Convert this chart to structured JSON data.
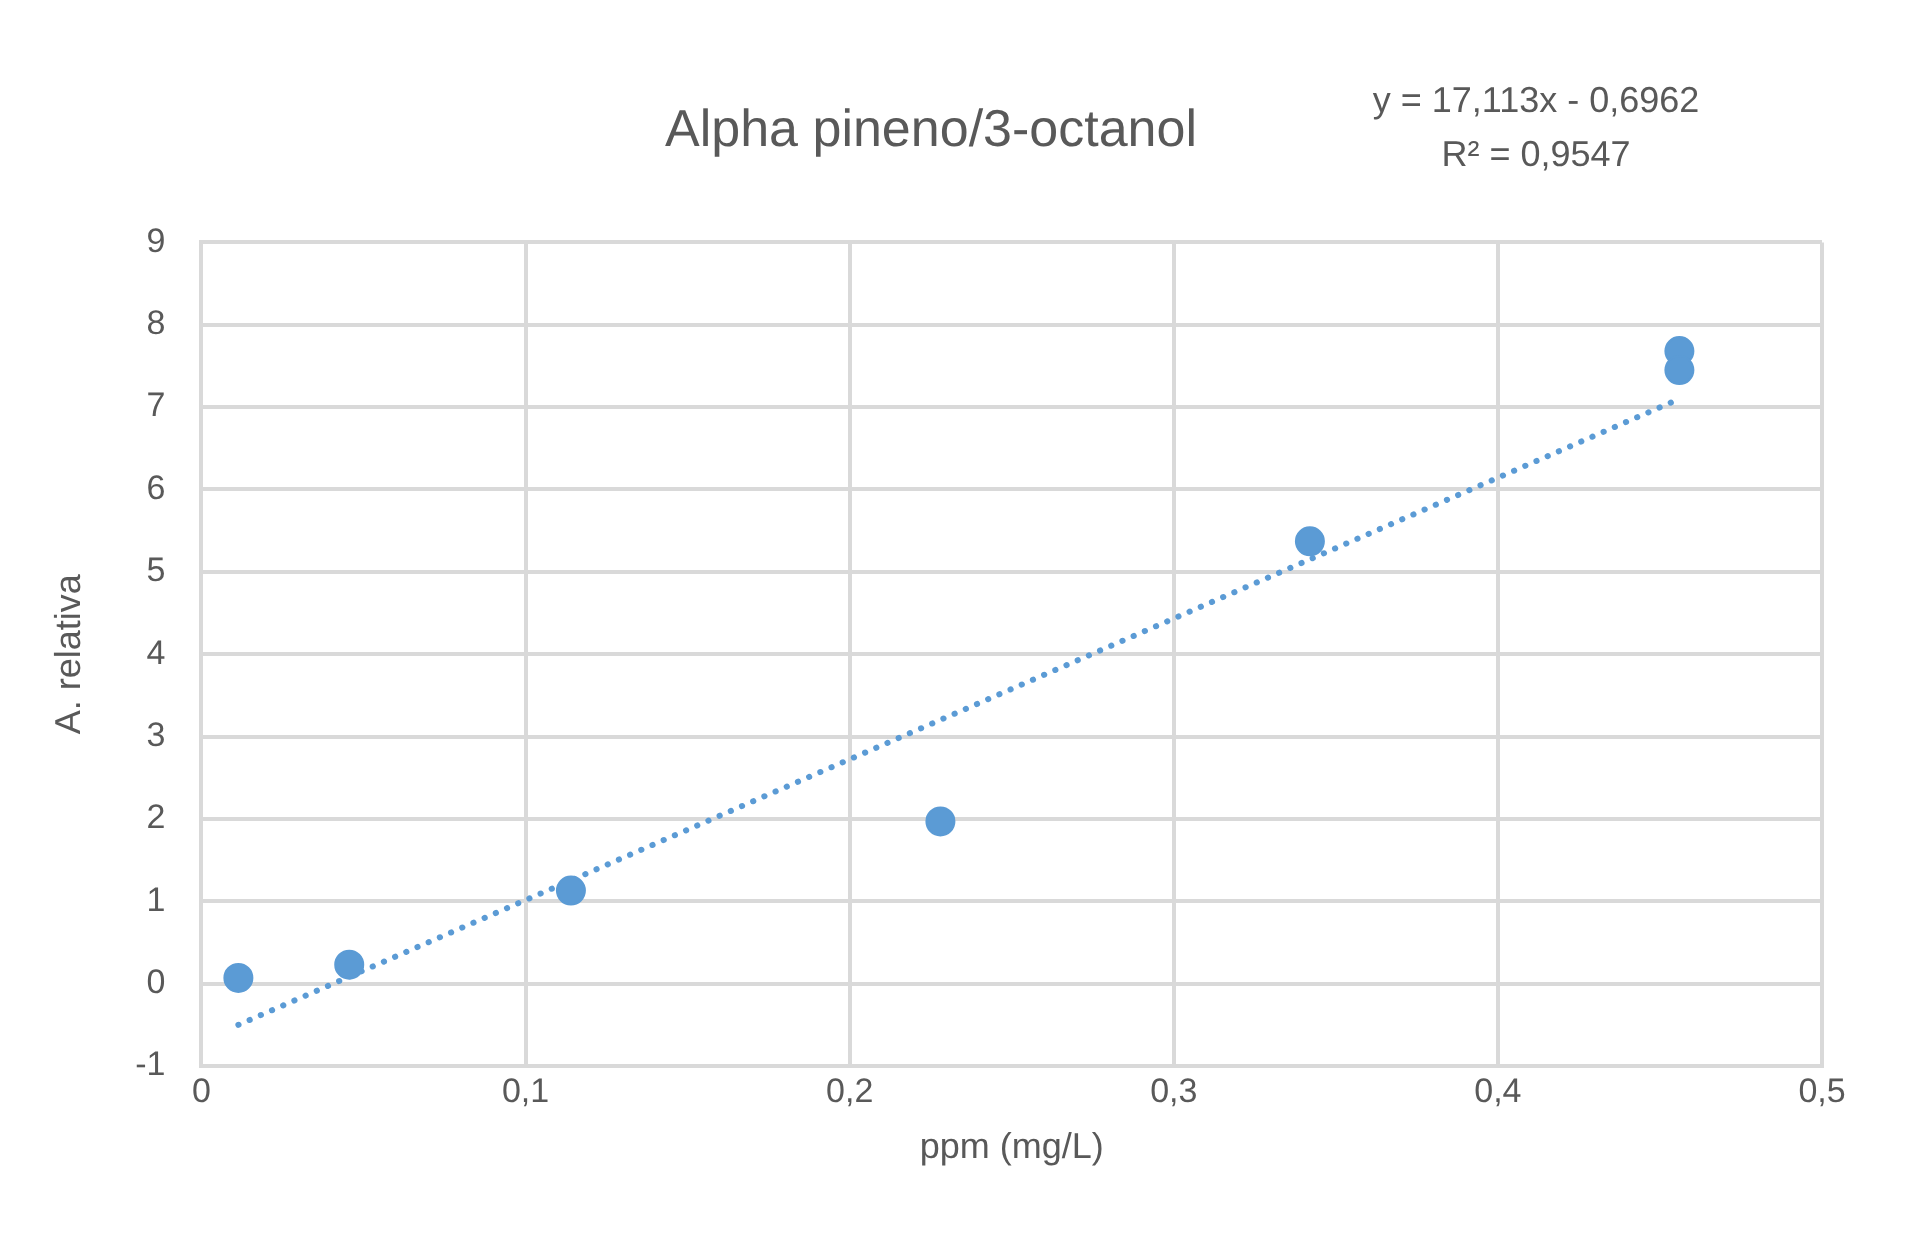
{
  "chart_data": {
    "type": "scatter",
    "title": "Alpha pineno/3-octanol",
    "xlabel": "ppm (mg/L)",
    "ylabel": "A. relativa",
    "annotations": [
      "y = 17,113x - 0,6962",
      "R² = 0,9547"
    ],
    "series": [
      {
        "color": "#5b9bd5",
        "x": [
          0.0114,
          0.0456,
          0.114,
          0.228,
          0.342,
          0.456,
          0.456
        ],
        "values": [
          0.07,
          0.23,
          1.13,
          1.97,
          5.37,
          7.68,
          7.45
        ]
      },
      {
        "type": "line",
        "color": "#5b9bd5",
        "line_style": "dotted",
        "marker": "none",
        "x": [
          0.0114,
          0.456
        ],
        "values": [
          -0.5,
          7.1
        ]
      }
    ],
    "marker": "circle",
    "xlim": [
      0,
      0.5
    ],
    "ylim": [
      -1,
      9
    ],
    "xticks": [
      0,
      {
        "value": 0.1,
        "label": "0,1"
      },
      {
        "value": 0.2,
        "label": "0,2"
      },
      {
        "value": 0.3,
        "label": "0,3"
      },
      {
        "value": 0.4,
        "label": "0,4"
      },
      {
        "value": 0.5,
        "label": "0,5"
      }
    ],
    "yticks": [
      -1,
      0,
      1,
      2,
      3,
      4,
      5,
      6,
      7,
      8,
      9
    ],
    "grid": true,
    "legend": false
  }
}
